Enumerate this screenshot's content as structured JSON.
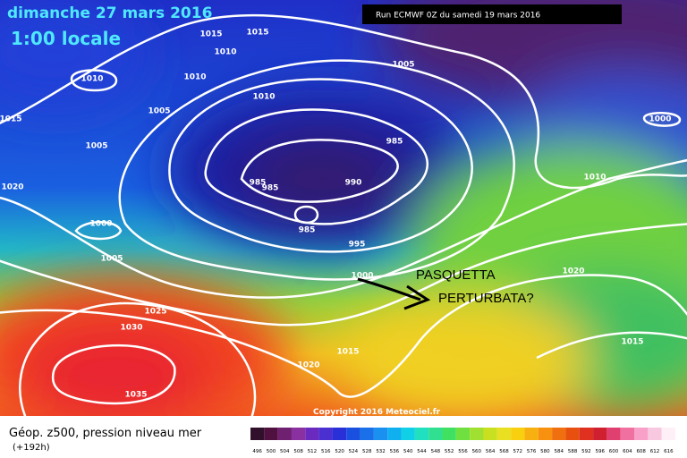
{
  "header": {
    "date": "dimanche 27 mars 2016",
    "time": "1:00 locale",
    "run": "Run ECMWF 0Z du samedi 19 mars 2016"
  },
  "annotation": {
    "line1": "PASQUETTA",
    "line2": "PERTURBATA?"
  },
  "copyright": "Copyright 2016 Meteociel.fr",
  "footer": {
    "title": "Géop. z500, pression niveau mer",
    "lead": "(+192h)"
  },
  "isobar_labels": [
    "1015",
    "1015",
    "1010",
    "1010",
    "1010",
    "1005",
    "1005",
    "1015",
    "1005",
    "1010",
    "985",
    "985",
    "985",
    "990",
    "985",
    "1020",
    "1000",
    "1005",
    "995",
    "1000",
    "1025",
    "1030",
    "1035",
    "1015",
    "1020",
    "1000",
    "1010",
    "1020",
    "1015"
  ],
  "scale": [
    496,
    500,
    504,
    508,
    512,
    516,
    520,
    524,
    528,
    532,
    536,
    540,
    544,
    548,
    552,
    556,
    560,
    564,
    568,
    572,
    576,
    580,
    584,
    588,
    592,
    596,
    600,
    604,
    608,
    612,
    616
  ]
}
